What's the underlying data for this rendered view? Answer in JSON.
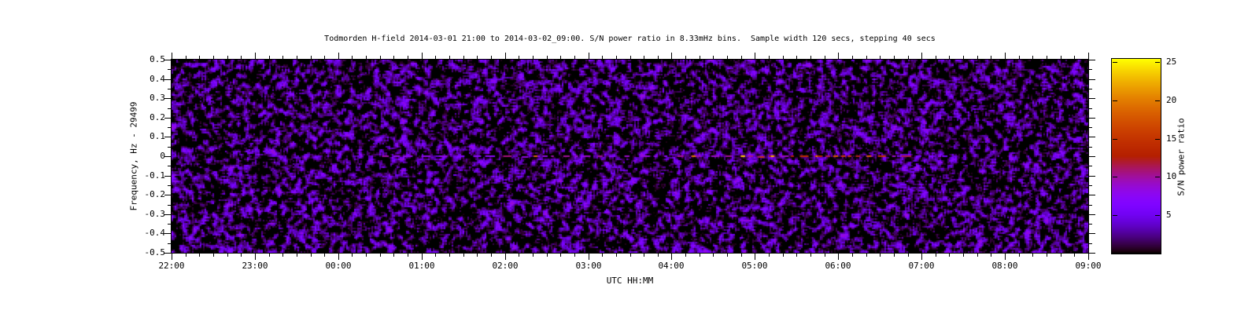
{
  "page": {
    "background": "#ffffff",
    "text_color": "#000000"
  },
  "chart_data": {
    "type": "heatmap",
    "title": "Todmorden H-field 2014-03-01 21:00 to 2014-03-02_09:00. S/N power ratio in 8.33mHz bins.  Sample width 120 secs, stepping 40 secs",
    "xlabel": "UTC HH:MM",
    "ylabel": "Frequency, Hz - 29499",
    "colorbar_label": "S/N power ratio",
    "x_ticks": [
      "22:00",
      "23:00",
      "00:00",
      "01:00",
      "02:00",
      "03:00",
      "04:00",
      "05:00",
      "06:00",
      "07:00",
      "08:00",
      "09:00"
    ],
    "x_minor_ticks_per_hour": 5,
    "x_range_hours": 11,
    "y_ticks": [
      "0.5",
      "0.4",
      "0.3",
      "0.2",
      "0.1",
      "0",
      "-0.1",
      "-0.2",
      "-0.3",
      "-0.4",
      "-0.5"
    ],
    "y_range": [
      -0.5,
      0.5
    ],
    "y_minor_step": 0.05,
    "colorbar_ticks": [
      5,
      10,
      15,
      20,
      25
    ],
    "colorbar_range": [
      0,
      25.4
    ],
    "grid": false,
    "legend": "colorbar on right",
    "palette": {
      "name": "gnuplot-pm3d-rgbformulae-7-5-15",
      "stops": [
        {
          "t": 0.0,
          "color": "#000000"
        },
        {
          "t": 0.25,
          "color": "#8004FF"
        },
        {
          "t": 0.375,
          "color": "#9C0DB4"
        },
        {
          "t": 0.5,
          "color": "#B42000"
        },
        {
          "t": 0.75,
          "color": "#DD6C00"
        },
        {
          "t": 1.0,
          "color": "#FFFF00"
        }
      ]
    },
    "noise": {
      "description": "Speckled background noise: black field with violet/purple blobs over the whole spectrogram",
      "typical_sn_ratio": "0-8"
    },
    "signal": {
      "description": "Intermittent dashed narrowband trace at 0 Hz offset (carrier 29499 Hz)",
      "frequency_offset_hz": 0,
      "visible_from_utc": "00:30",
      "visible_to_utc": "06:55",
      "enhanced_from_utc": "04:45",
      "hours_from_axis_start": {
        "start": 2.5,
        "bright": 6.75,
        "end": 8.92
      },
      "typical_sn_ratio": "8-12",
      "peak_sn_ratio": 25
    }
  }
}
